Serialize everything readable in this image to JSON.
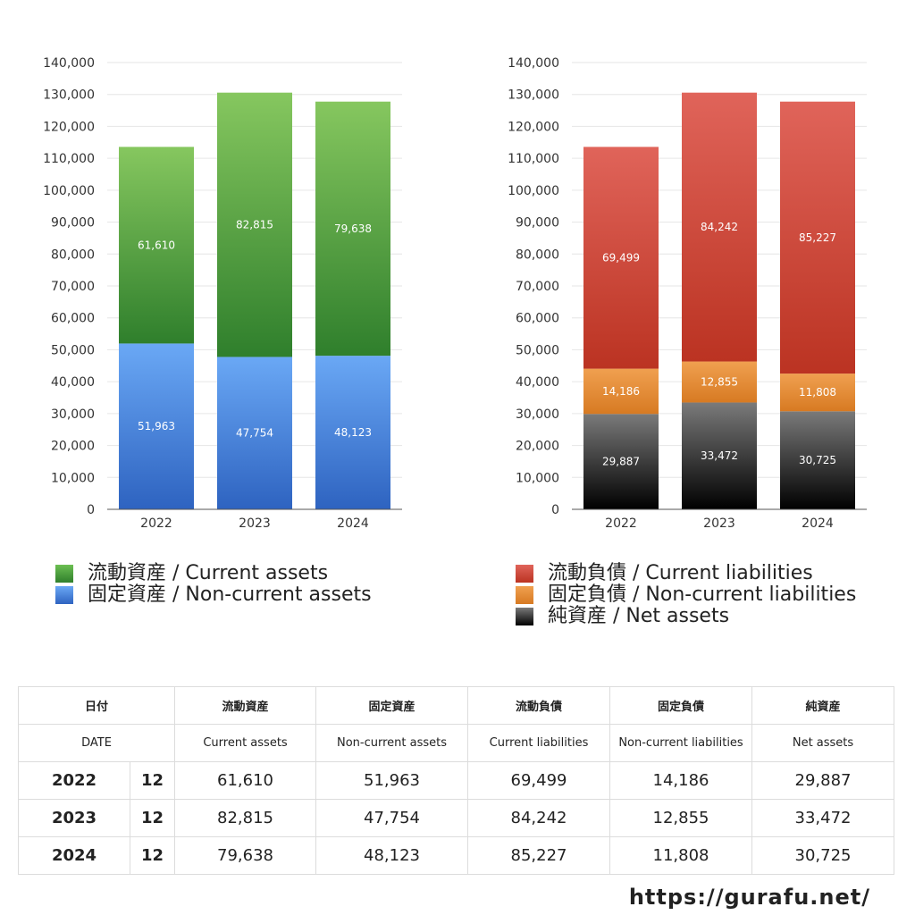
{
  "chart_data": [
    {
      "type": "bar",
      "stacked": true,
      "categories": [
        "2022",
        "2023",
        "2024"
      ],
      "ylim": [
        0,
        140000
      ],
      "ytick_step": 10000,
      "yticks": [
        "0",
        "10,000",
        "20,000",
        "30,000",
        "40,000",
        "50,000",
        "60,000",
        "70,000",
        "80,000",
        "90,000",
        "100,000",
        "110,000",
        "120,000",
        "130,000",
        "140,000"
      ],
      "grid": true,
      "series": [
        {
          "name": "固定資産 / Non-current assets",
          "values": [
            51963,
            47754,
            48123
          ],
          "labels": [
            "51,963",
            "47,754",
            "48,123"
          ],
          "color_top": "#6aa8f5",
          "color_bottom": "#2e63c0"
        },
        {
          "name": "流動資産 / Current assets",
          "values": [
            61610,
            82815,
            79638
          ],
          "labels": [
            "61,610",
            "82,815",
            "79,638"
          ],
          "color_top": "#86c75f",
          "color_bottom": "#2f7f2c"
        }
      ]
    },
    {
      "type": "bar",
      "stacked": true,
      "categories": [
        "2022",
        "2023",
        "2024"
      ],
      "ylim": [
        0,
        140000
      ],
      "ytick_step": 10000,
      "yticks": [
        "0",
        "10,000",
        "20,000",
        "30,000",
        "40,000",
        "50,000",
        "60,000",
        "70,000",
        "80,000",
        "90,000",
        "100,000",
        "110,000",
        "120,000",
        "130,000",
        "140,000"
      ],
      "grid": true,
      "series": [
        {
          "name": "純資産 / Net assets",
          "values": [
            29887,
            33472,
            30725
          ],
          "labels": [
            "29,887",
            "33,472",
            "30,725"
          ],
          "color_top": "#7a7a7a",
          "color_bottom": "#000000"
        },
        {
          "name": "固定負債 / Non-current liabilities",
          "values": [
            14186,
            12855,
            11808
          ],
          "labels": [
            "14,186",
            "12,855",
            "11,808"
          ],
          "color_top": "#f0a050",
          "color_bottom": "#d77a22"
        },
        {
          "name": "流動負債 / Current liabilities",
          "values": [
            69499,
            84242,
            85227
          ],
          "labels": [
            "69,499",
            "84,242",
            "85,227"
          ],
          "color_top": "#e0645a",
          "color_bottom": "#bb3322"
        }
      ]
    }
  ],
  "legend_assets": [
    {
      "label": "流動資産 / Current assets",
      "color": "#4e9d3f"
    },
    {
      "label": "固定資産 / Non-current assets",
      "color": "#4a86dc"
    }
  ],
  "legend_liabilities": [
    {
      "label": "流動負債 / Current liabilities",
      "color": "#cf4a3c"
    },
    {
      "label": "固定負債 / Non-current liabilities",
      "color": "#e68a33"
    },
    {
      "label": "純資産 / Net assets",
      "color": "#3a3a3a"
    }
  ],
  "table": {
    "header_jp": {
      "date": "日付",
      "current_assets": "流動資産",
      "noncurrent_assets": "固定資産",
      "current_liabilities": "流動負債",
      "noncurrent_liabilities": "固定負債",
      "net_assets": "純資産"
    },
    "header_en": {
      "date": "DATE",
      "current_assets": "Current assets",
      "noncurrent_assets": "Non-current assets",
      "current_liabilities": "Current liabilities",
      "noncurrent_liabilities": "Non-current liabilities",
      "net_assets": "Net assets"
    },
    "rows": [
      {
        "year": "2022",
        "month": "12",
        "current_assets": "61,610",
        "noncurrent_assets": "51,963",
        "current_liabilities": "69,499",
        "noncurrent_liabilities": "14,186",
        "net_assets": "29,887"
      },
      {
        "year": "2023",
        "month": "12",
        "current_assets": "82,815",
        "noncurrent_assets": "47,754",
        "current_liabilities": "84,242",
        "noncurrent_liabilities": "12,855",
        "net_assets": "33,472"
      },
      {
        "year": "2024",
        "month": "12",
        "current_assets": "79,638",
        "noncurrent_assets": "48,123",
        "current_liabilities": "85,227",
        "noncurrent_liabilities": "11,808",
        "net_assets": "30,725"
      }
    ]
  },
  "site_url": "https://gurafu.net/"
}
